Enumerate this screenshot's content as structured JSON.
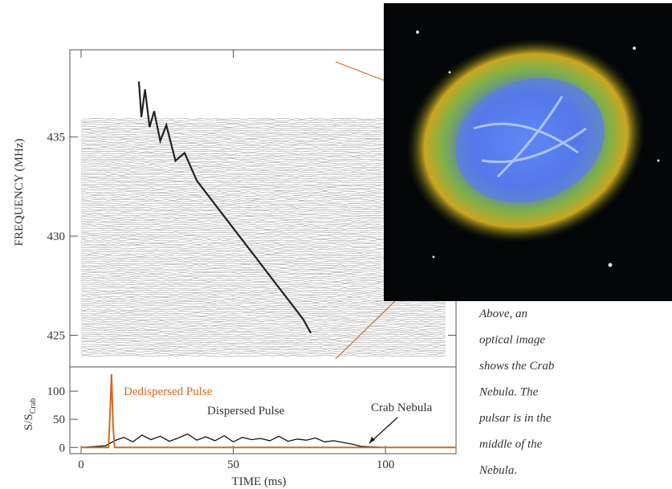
{
  "chart_data": [
    {
      "type": "waterfall",
      "ylabel": "FREQUENCY (MHz)",
      "xlim": [
        -3.7,
        123.2
      ],
      "ylim": [
        423.4,
        439.4
      ],
      "yticks": [
        425,
        430,
        435
      ],
      "series": [
        {
          "color": "#222222",
          "x": [
            19,
            19.8,
            21,
            22.5,
            24,
            26,
            28,
            31,
            34,
            38,
            42,
            47,
            52,
            57,
            62,
            66,
            70,
            73,
            75.5
          ],
          "values": [
            437.8,
            436.0,
            437.4,
            435.5,
            436.3,
            434.8,
            435.6,
            433.8,
            434.2,
            432.8,
            432.0,
            431.0,
            430.0,
            429.0,
            428.0,
            427.2,
            426.4,
            425.8,
            425.1
          ]
        }
      ]
    },
    {
      "type": "line",
      "xlabel": "TIME (ms)",
      "ylabel": {
        "main": "S/S",
        "sub": "Crab"
      },
      "xlim": [
        -3.7,
        123.2
      ],
      "ylim": [
        -11,
        143
      ],
      "xticks": [
        0,
        50,
        100
      ],
      "yticks": [
        0,
        50,
        100
      ],
      "series": [
        {
          "name": "Dedispersed Pulse",
          "color": "#d2691e",
          "x": [
            0,
            9,
            9.5,
            10,
            10.5,
            11,
            123
          ],
          "values": [
            0,
            0,
            60,
            130,
            40,
            0,
            0
          ]
        },
        {
          "name": "Dispersed Pulse",
          "color": "#111111",
          "x": [
            0,
            8,
            11,
            14,
            17,
            20,
            23,
            26,
            29,
            32,
            35,
            38,
            41,
            44,
            47,
            50,
            53,
            56,
            59,
            62,
            65,
            68,
            71,
            74,
            77,
            80,
            83,
            86,
            89,
            92,
            100
          ],
          "values": [
            0,
            3,
            12,
            18,
            10,
            22,
            14,
            20,
            11,
            17,
            24,
            13,
            19,
            12,
            21,
            10,
            18,
            14,
            16,
            12,
            20,
            11,
            15,
            13,
            17,
            10,
            12,
            9,
            6,
            2,
            0
          ]
        }
      ],
      "annotation": "Crab Nebula"
    }
  ],
  "caption": [
    "Above, an",
    "optical image",
    "shows the Crab",
    "Nebula.  The",
    "pulsar is in the",
    "middle of the",
    "Nebula."
  ]
}
